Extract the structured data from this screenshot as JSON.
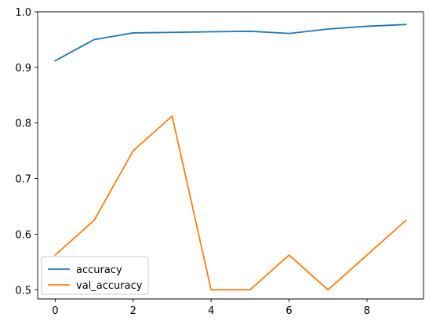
{
  "chart_data": {
    "type": "line",
    "title": "",
    "xlabel": "",
    "ylabel": "",
    "x": [
      0,
      1,
      2,
      3,
      4,
      5,
      6,
      7,
      8,
      9
    ],
    "xlim": [
      -0.45,
      9.45
    ],
    "ylim": [
      0.4835,
      1.0
    ],
    "xticks": [
      0,
      2,
      4,
      6,
      8
    ],
    "yticks": [
      0.5,
      0.6,
      0.7,
      0.8,
      0.9,
      1.0
    ],
    "ytick_labels": [
      "0.5",
      "0.6",
      "0.7",
      "0.8",
      "0.9",
      "1.0"
    ],
    "grid": false,
    "legend_position": "bottom-left",
    "series": [
      {
        "name": "accuracy",
        "color": "#1f77b4",
        "values": [
          0.912,
          0.95,
          0.962,
          0.963,
          0.964,
          0.965,
          0.961,
          0.969,
          0.974,
          0.977
        ]
      },
      {
        "name": "val_accuracy",
        "color": "#ff7f0e",
        "values": [
          0.5625,
          0.625,
          0.75,
          0.8125,
          0.5,
          0.5,
          0.5625,
          0.5,
          0.5625,
          0.625
        ]
      }
    ]
  }
}
